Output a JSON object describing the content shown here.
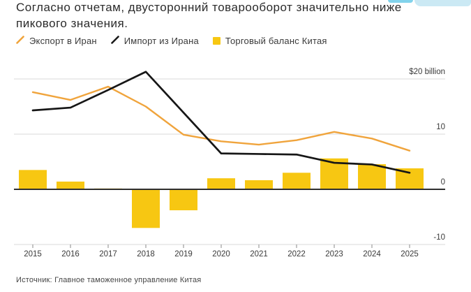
{
  "title": {
    "line1": "Согласно отчетам, двусторонний товарооборот значительно ниже",
    "line2": "пикового значения."
  },
  "legend": [
    {
      "label": "Экспорт в Иран",
      "marker": "line",
      "color": "#f0a43c"
    },
    {
      "label": "Импорт из Ирана",
      "marker": "line",
      "color": "#1a1a1a"
    },
    {
      "label": "Торговый баланс Китая",
      "marker": "square",
      "color": "#f7c712"
    }
  ],
  "source": "Источник: Главное таможенное управление Китая",
  "colors": {
    "export_line": "#f0a43c",
    "import_line": "#161616",
    "balance_bar": "#f7c712",
    "gridline": "#d8d8d8",
    "zero_axis": "#2f2f2f",
    "text": "#3a3a3a",
    "highlight": "#cbe9f4"
  },
  "chart_data": {
    "type": "combo",
    "categories": [
      "2015",
      "2016",
      "2017",
      "2018",
      "2019",
      "2020",
      "2021",
      "2022",
      "2023",
      "2024",
      "2025"
    ],
    "series": [
      {
        "name": "Экспорт в Иран",
        "type": "line",
        "color": "#f0a43c",
        "values": [
          17.6,
          16.2,
          18.6,
          15.0,
          9.9,
          8.7,
          8.1,
          8.9,
          10.4,
          9.2,
          7.0
        ]
      },
      {
        "name": "Импорт из Ирана",
        "type": "line",
        "color": "#161616",
        "values": [
          14.3,
          14.8,
          18.0,
          21.3,
          13.9,
          6.5,
          6.4,
          6.3,
          4.8,
          4.5,
          3.0
        ]
      },
      {
        "name": "Торговый баланс Китая",
        "type": "bar",
        "color": "#f7c712",
        "values": [
          3.5,
          1.4,
          0.15,
          -7.0,
          -3.8,
          2.0,
          1.65,
          3.0,
          5.6,
          4.55,
          3.8
        ]
      }
    ],
    "y_axis": {
      "unit": "$ billion",
      "ticks": [
        {
          "value": 20,
          "label": "$20 billion"
        },
        {
          "value": 10,
          "label": "10"
        },
        {
          "value": 0,
          "label": "0"
        },
        {
          "value": -10,
          "label": "-10"
        }
      ],
      "ylim": [
        -12,
        22
      ]
    },
    "grid": true,
    "legend_position": "top"
  }
}
